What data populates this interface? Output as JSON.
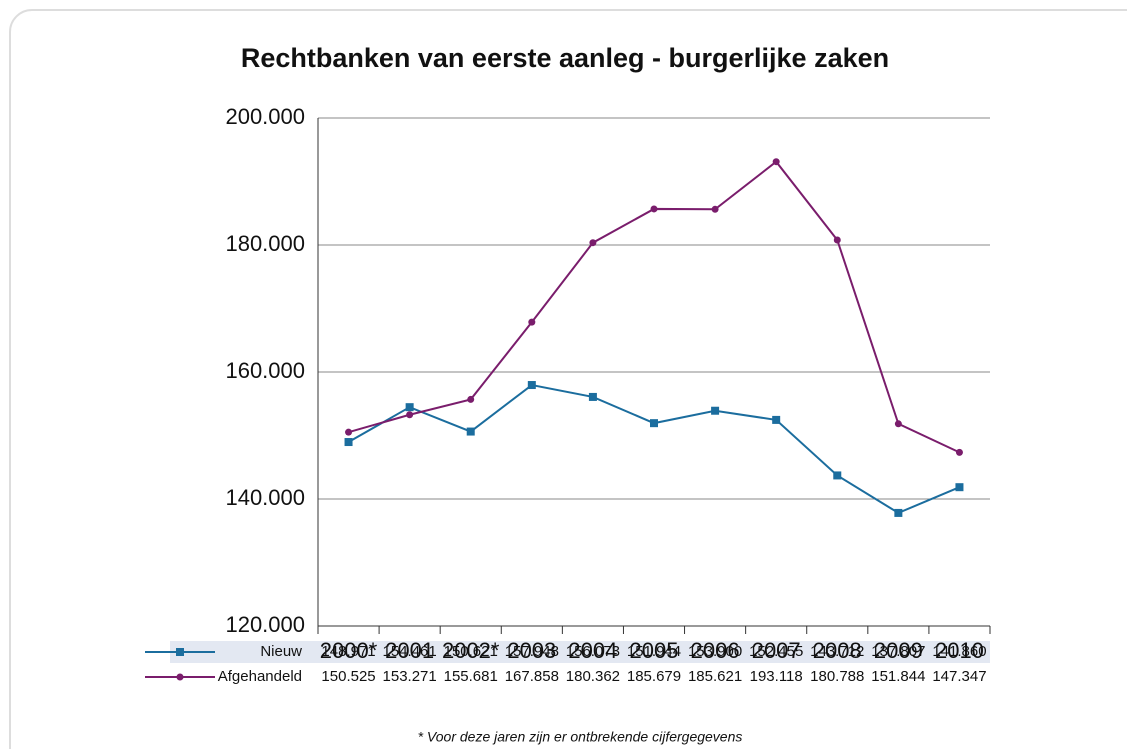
{
  "chart_data": {
    "type": "line",
    "title": "Rechtbanken van eerste aanleg - burgerlijke zaken",
    "categories": [
      "2000*",
      "2001",
      "2002*",
      "2003",
      "2004",
      "2005",
      "2006",
      "2007",
      "2008",
      "2009",
      "2010"
    ],
    "series": [
      {
        "name": "Nieuw",
        "color": "#1b6d9e",
        "marker": "square",
        "values": [
          148971,
          154461,
          150621,
          157948,
          156073,
          151944,
          153900,
          152455,
          143712,
          137807,
          141860
        ],
        "value_labels": [
          "148.971",
          "154.461",
          "150.621",
          "157.948",
          "156.073",
          "151.944",
          "153.900",
          "152.455",
          "143.712",
          "137.807",
          "141.860"
        ]
      },
      {
        "name": "Afgehandeld",
        "color": "#7a1d6c",
        "marker": "circle",
        "values": [
          150525,
          153271,
          155681,
          167858,
          180362,
          185679,
          185621,
          193118,
          180788,
          151844,
          147347
        ],
        "value_labels": [
          "150.525",
          "153.271",
          "155.681",
          "167.858",
          "180.362",
          "185.679",
          "185.621",
          "193.118",
          "180.788",
          "151.844",
          "147.347"
        ]
      }
    ],
    "ylim": [
      120000,
      200000
    ],
    "yticks": [
      {
        "value": 120000,
        "label": "120.000"
      },
      {
        "value": 140000,
        "label": "140.000"
      },
      {
        "value": 160000,
        "label": "160.000"
      },
      {
        "value": 180000,
        "label": "180.000"
      },
      {
        "value": 200000,
        "label": "200.000"
      }
    ],
    "grid": true,
    "footnote": "* Voor deze jaren zijn er ontbrekende cijfergegevens"
  }
}
